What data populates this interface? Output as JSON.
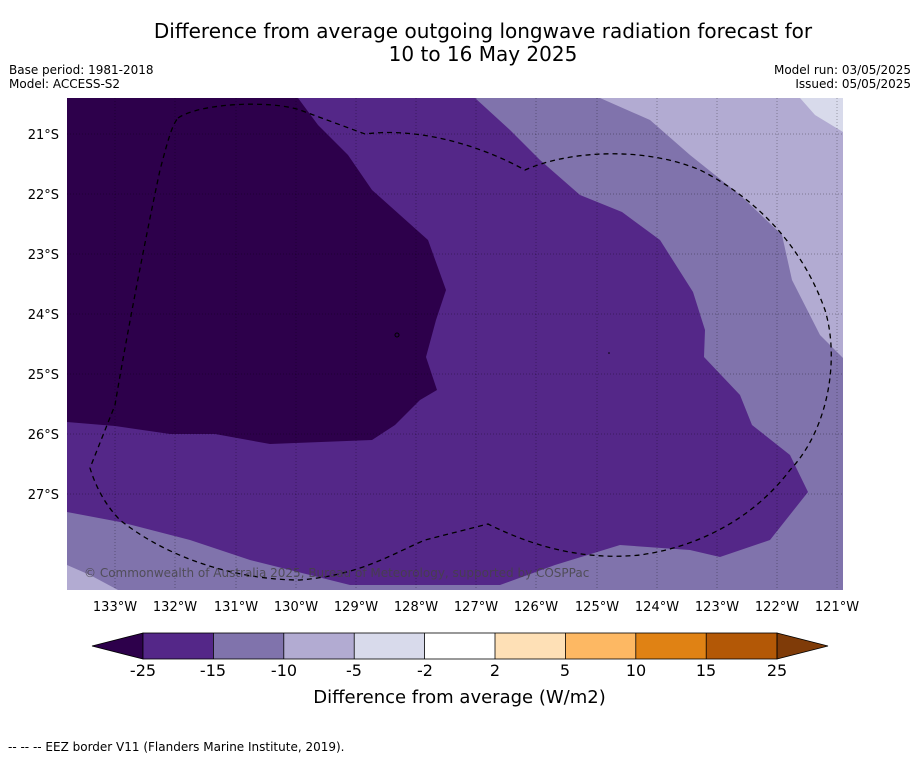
{
  "title": {
    "line1": "Difference from average outgoing longwave radiation forecast for",
    "line2": "10 to 16 May 2025"
  },
  "meta": {
    "base_period": "Base period: 1981-2018",
    "model": "Model: ACCESS-S2",
    "model_run": "Model run: 03/05/2025",
    "issued": "Issued: 05/05/2025"
  },
  "map": {
    "copyright": "© Commonwealth of Australia 2025, Bureau of Meteorology, supported by COSPPac",
    "lat_labels": [
      "21°S",
      "22°S",
      "23°S",
      "24°S",
      "25°S",
      "26°S",
      "27°S"
    ],
    "lon_labels": [
      "133°W",
      "132°W",
      "131°W",
      "130°W",
      "129°W",
      "128°W",
      "127°W",
      "126°W",
      "125°W",
      "124°W",
      "123°W",
      "122°W",
      "121°W"
    ]
  },
  "colorbar": {
    "label": "Difference from average (W/m2)",
    "tick_labels": [
      "-25",
      "-15",
      "-10",
      "-5",
      "-2",
      "2",
      "5",
      "10",
      "15",
      "25"
    ],
    "colors": {
      "below_-25": "#2d004b",
      "-25_-15": "#542788",
      "-15_-10": "#8073ac",
      "-10_-5": "#b2abd2",
      "-5_-2": "#d8daeb",
      "-2_2": "#ffffff",
      "2_5": "#fee0b6",
      "5_10": "#fdb863",
      "10_15": "#e08214",
      "15_25": "#b35806",
      "above_25": "#7f3b08"
    }
  },
  "footnote": "--  --  -- EEZ border V11 (Flanders Marine Institute, 2019)."
}
